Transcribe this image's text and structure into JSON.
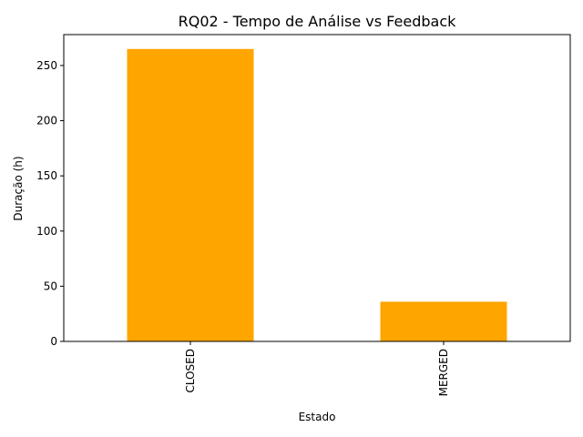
{
  "chart_data": {
    "type": "bar",
    "title": "RQ02 - Tempo de Análise vs Feedback",
    "xlabel": "Estado",
    "ylabel": "Duração (h)",
    "categories": [
      "CLOSED",
      "MERGED"
    ],
    "values": [
      265,
      36
    ],
    "ylim": [
      0,
      278
    ],
    "yticks": [
      0,
      50,
      100,
      150,
      200,
      250
    ],
    "bar_color": "#FFA500",
    "grid": false,
    "legend": "none"
  }
}
